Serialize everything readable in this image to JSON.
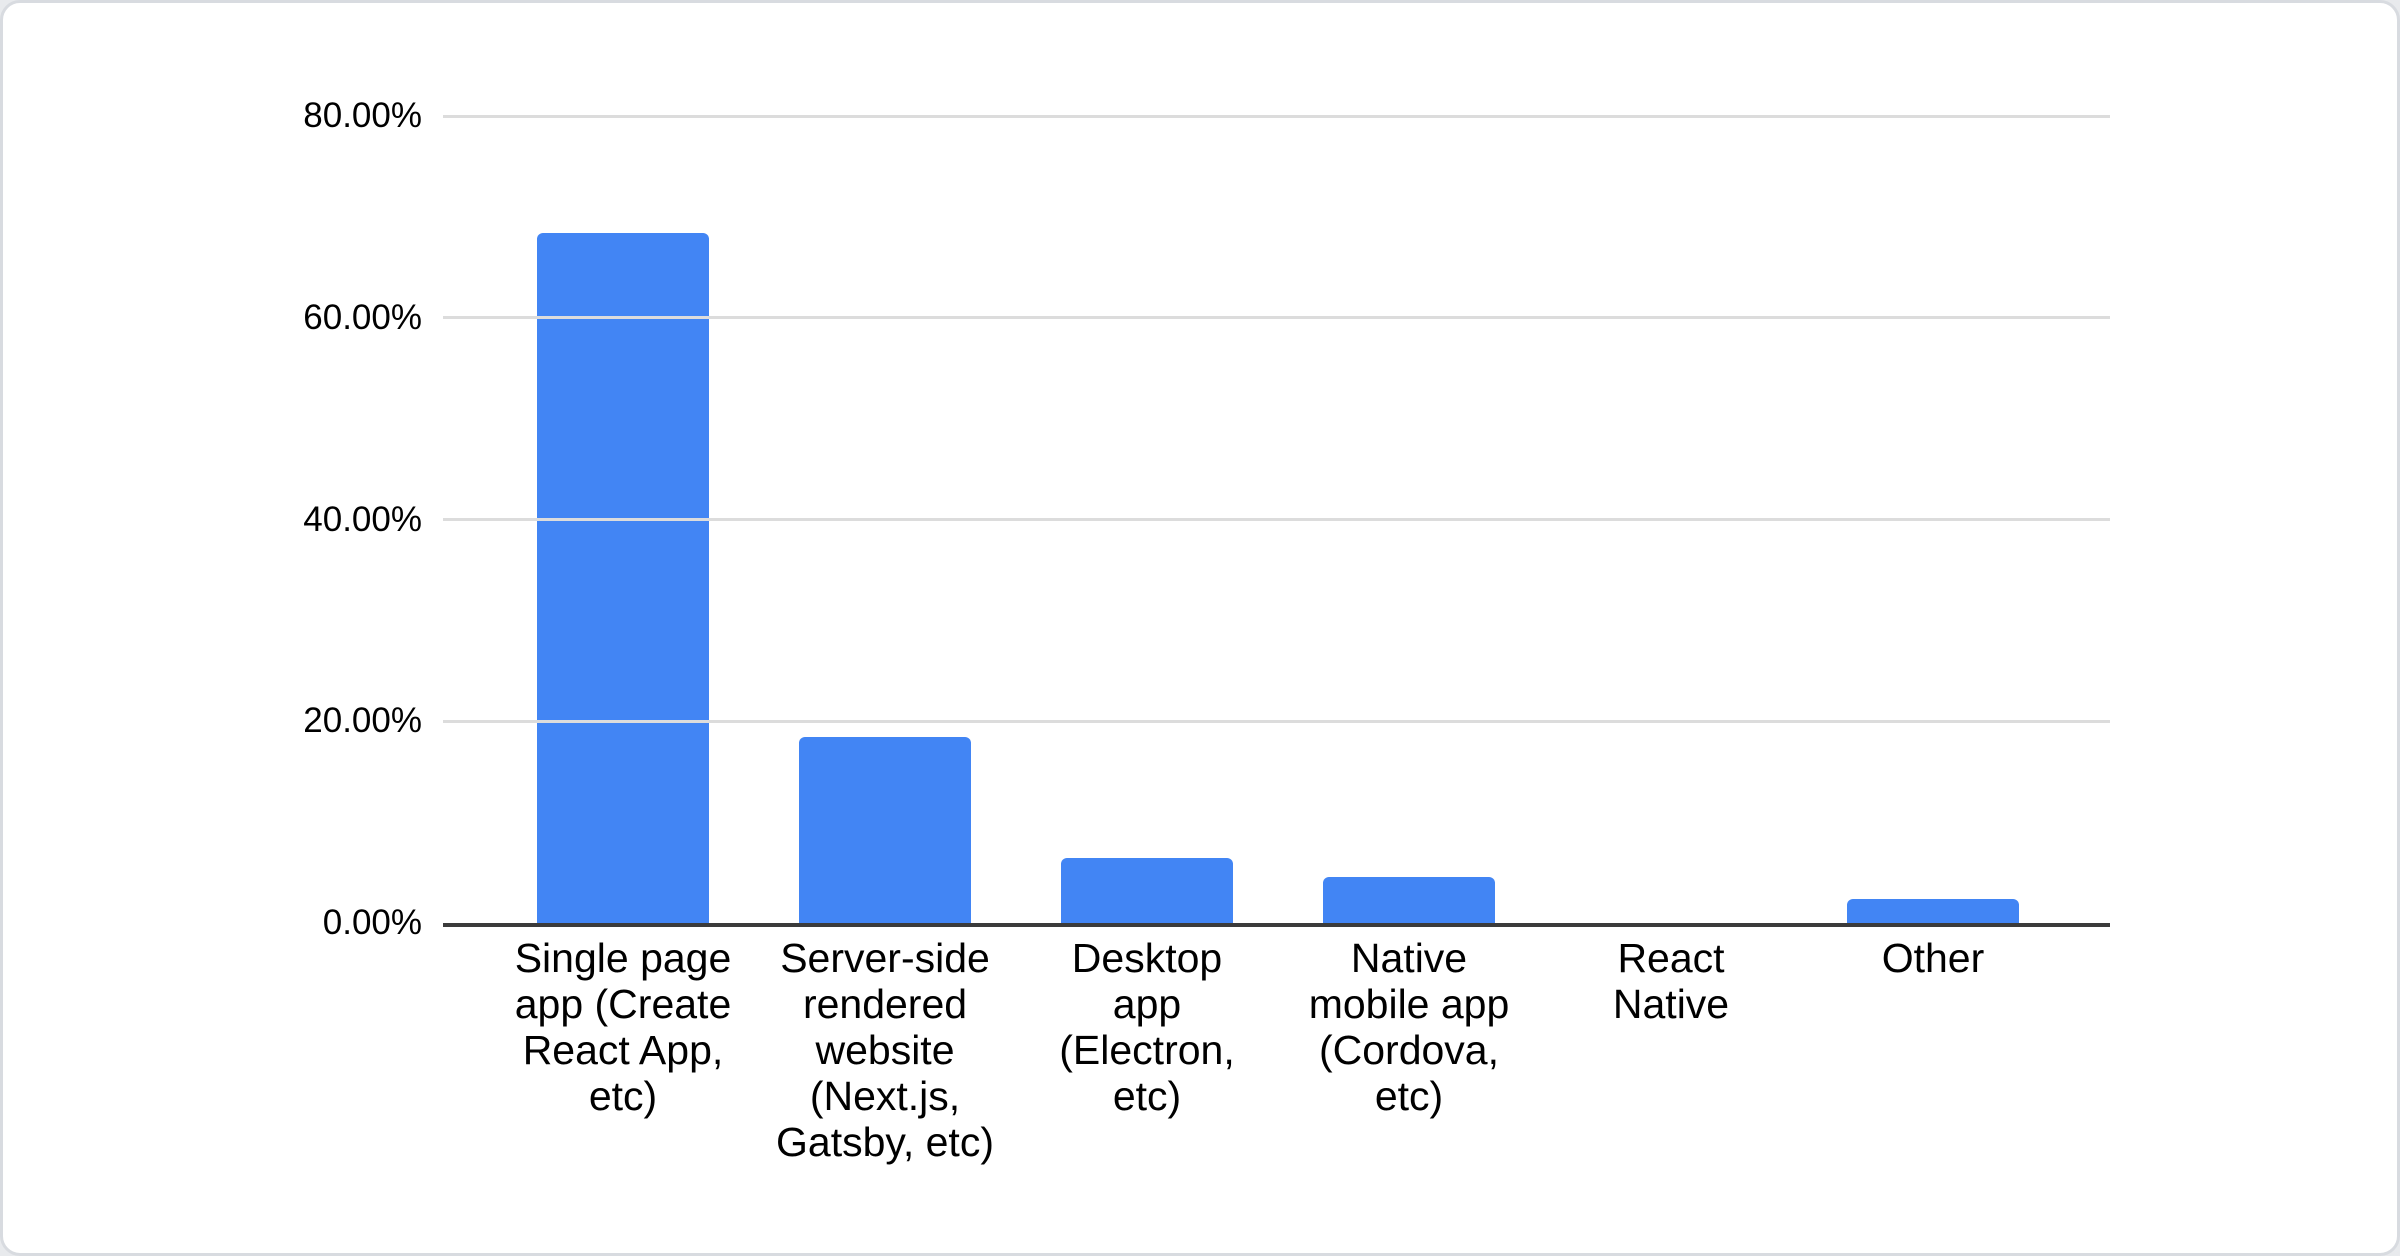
{
  "card": {
    "background": "#ffffff",
    "border_color": "#d8dbe0"
  },
  "chart_data": {
    "type": "bar",
    "title": "",
    "xlabel": "",
    "ylabel": "",
    "legend": "none",
    "grid": true,
    "ylim": [
      0,
      80
    ],
    "bar_color": "#4285f4",
    "gridline_color": "#dcdcdc",
    "axis_line_color": "#3b3b3b",
    "y_ticks": [
      {
        "value": 0,
        "label": "0.00%"
      },
      {
        "value": 20,
        "label": "20.00%"
      },
      {
        "value": 40,
        "label": "40.00%"
      },
      {
        "value": 60,
        "label": "60.00%"
      },
      {
        "value": 80,
        "label": "80.00%"
      }
    ],
    "categories": [
      "Single page app (Create React App, etc)",
      "Server-side rendered website (Next.js, Gatsby, etc)",
      "Desktop app (Electron, etc)",
      "Native mobile app (Cordova, etc)",
      "React Native",
      "Other"
    ],
    "category_display": [
      "Single page\napp (Create\nReact App,\netc)",
      "Server-side\nrendered\nwebsite\n(Next.js,\nGatsby, etc)",
      "Desktop\napp\n(Electron,\netc)",
      "Native\nmobile app\n(Cordova,\netc)",
      "React\nNative",
      "Other"
    ],
    "values": [
      68.4,
      18.4,
      6.4,
      4.6,
      0,
      2.4
    ],
    "unit": "%"
  }
}
